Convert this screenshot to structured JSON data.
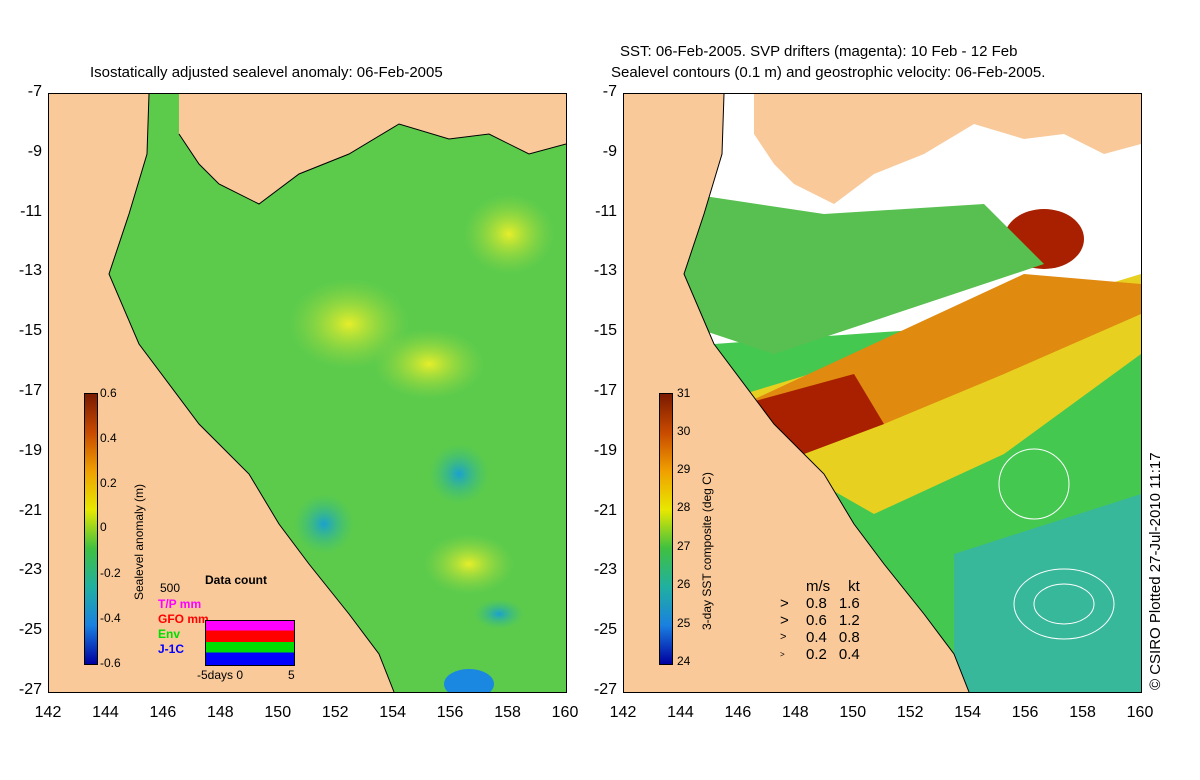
{
  "left_panel": {
    "title": "Isostatically adjusted sealevel anomaly: 06-Feb-2005",
    "colorbar": {
      "label": "Sealevel anomaly (m)",
      "ticks": [
        "0.6",
        "0.4",
        "0.2",
        "0",
        "-0.2",
        "-0.4",
        "-0.6"
      ]
    },
    "data_count": {
      "title": "Data count",
      "max_label": "500",
      "series": [
        {
          "name": "T/P mm",
          "color": "#ff00ff"
        },
        {
          "name": "GFO mm",
          "color": "#ff0000"
        },
        {
          "name": "Env",
          "color": "#00dd00"
        },
        {
          "name": "J-1C",
          "color": "#0000ff"
        }
      ],
      "x_axis_label": "-5days 0",
      "x_axis_end": "5"
    }
  },
  "right_panel": {
    "title_line1": "SST: 06-Feb-2005. SVP drifters (magenta): 10 Feb - 12 Feb",
    "title_line2": "Sealevel contours (0.1 m) and geostrophic velocity: 06-Feb-2005.",
    "colorbar": {
      "label": "3-day SST composite (deg C)",
      "ticks": [
        "31",
        "30",
        "29",
        "28",
        "27",
        "26",
        "25",
        "24"
      ]
    },
    "velocity_legend": {
      "header_ms": "m/s",
      "header_kt": "kt",
      "rows": [
        {
          "ms": "0.8",
          "kt": "1.6"
        },
        {
          "ms": "0.6",
          "kt": "1.2"
        },
        {
          "ms": "0.4",
          "kt": "0.8"
        },
        {
          "ms": "0.2",
          "kt": "0.4"
        }
      ]
    },
    "credit": "© CSIRO Plotted 27-Jul-2010 11:17"
  },
  "axes": {
    "lat_ticks": [
      "-7",
      "-9",
      "-11",
      "-13",
      "-15",
      "-17",
      "-19",
      "-21",
      "-23",
      "-25",
      "-27"
    ],
    "lon_ticks": [
      "142",
      "144",
      "146",
      "148",
      "150",
      "152",
      "154",
      "156",
      "158",
      "160"
    ]
  },
  "colors": {
    "land": "#f9c99a",
    "ocean_mid": "#4cc64a",
    "nodata": "#ffffff"
  }
}
